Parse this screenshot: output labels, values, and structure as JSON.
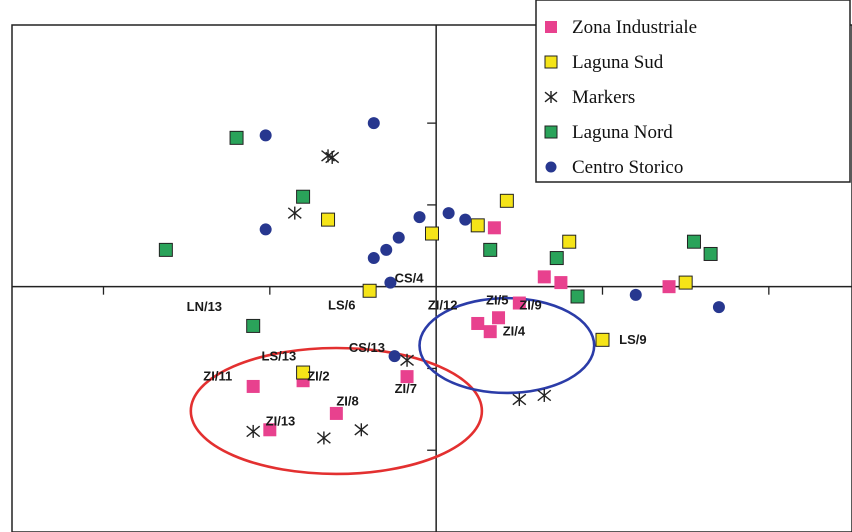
{
  "chart_data": {
    "type": "scatter",
    "title": "",
    "xlabel": "",
    "ylabel": "",
    "xlim": [
      -5.1,
      5.0
    ],
    "ylim": [
      -3.0,
      3.2
    ],
    "grid": false,
    "legend_position": "top-right",
    "series": [
      {
        "name": "Zona Industriale",
        "marker": "square",
        "color": "#e8418e",
        "points": [
          {
            "x": 0.7,
            "y": 0.72
          },
          {
            "x": 1.3,
            "y": 0.12
          },
          {
            "x": 1.5,
            "y": 0.05
          },
          {
            "x": 2.8,
            "y": 0.0
          },
          {
            "x": 1.0,
            "y": -0.2
          },
          {
            "x": 0.5,
            "y": -0.45
          },
          {
            "x": 0.75,
            "y": -0.38
          },
          {
            "x": 0.65,
            "y": -0.55
          },
          {
            "x": -1.6,
            "y": -1.15
          },
          {
            "x": -0.35,
            "y": -1.1
          },
          {
            "x": -2.2,
            "y": -1.22
          },
          {
            "x": -1.2,
            "y": -1.55
          },
          {
            "x": -2.0,
            "y": -1.75
          }
        ]
      },
      {
        "name": "Laguna  Sud",
        "marker": "square",
        "color": "#f5e418",
        "points": [
          {
            "x": 0.85,
            "y": 1.05
          },
          {
            "x": 0.5,
            "y": 0.75
          },
          {
            "x": -1.3,
            "y": 0.82
          },
          {
            "x": -0.05,
            "y": 0.65
          },
          {
            "x": 1.6,
            "y": 0.55
          },
          {
            "x": 3.0,
            "y": 0.05
          },
          {
            "x": -0.8,
            "y": -0.05
          },
          {
            "x": 2.0,
            "y": -0.65
          },
          {
            "x": -1.6,
            "y": -1.05
          }
        ]
      },
      {
        "name": "Markers",
        "marker": "asterisk",
        "color": "#222222",
        "points": [
          {
            "x": -1.3,
            "y": 1.6
          },
          {
            "x": -1.25,
            "y": 1.58
          },
          {
            "x": -1.7,
            "y": 0.9
          },
          {
            "x": -0.35,
            "y": -0.9
          },
          {
            "x": 1.0,
            "y": -1.38
          },
          {
            "x": 1.3,
            "y": -1.33
          },
          {
            "x": -2.2,
            "y": -1.77
          },
          {
            "x": -0.9,
            "y": -1.75
          },
          {
            "x": -1.35,
            "y": -1.85
          }
        ]
      },
      {
        "name": "Laguna  Nord",
        "marker": "square",
        "color": "#2aa35a",
        "points": [
          {
            "x": -2.4,
            "y": 1.82
          },
          {
            "x": -1.6,
            "y": 1.1
          },
          {
            "x": -3.25,
            "y": 0.45
          },
          {
            "x": 0.65,
            "y": 0.45
          },
          {
            "x": 1.45,
            "y": 0.35
          },
          {
            "x": 3.1,
            "y": 0.55
          },
          {
            "x": 3.3,
            "y": 0.4
          },
          {
            "x": 1.7,
            "y": -0.12
          },
          {
            "x": -2.2,
            "y": -0.48
          }
        ]
      },
      {
        "name": "Centro  Storico",
        "marker": "circle",
        "color": "#27378f",
        "points": [
          {
            "x": -2.05,
            "y": 1.85
          },
          {
            "x": -0.75,
            "y": 2.0
          },
          {
            "x": -2.05,
            "y": 0.7
          },
          {
            "x": -0.2,
            "y": 0.85
          },
          {
            "x": 0.15,
            "y": 0.9
          },
          {
            "x": 0.35,
            "y": 0.82
          },
          {
            "x": -0.45,
            "y": 0.6
          },
          {
            "x": -0.6,
            "y": 0.45
          },
          {
            "x": -0.75,
            "y": 0.35
          },
          {
            "x": -0.55,
            "y": 0.05
          },
          {
            "x": 2.4,
            "y": -0.1
          },
          {
            "x": 3.4,
            "y": -0.25
          },
          {
            "x": -0.5,
            "y": -0.85
          }
        ]
      }
    ],
    "annotations": [
      {
        "text": "CS/4",
        "x": -0.5,
        "y": 0.05
      },
      {
        "text": "LN/13",
        "x": -3.0,
        "y": -0.3
      },
      {
        "text": "LS/6",
        "x": -1.3,
        "y": -0.28
      },
      {
        "text": "ZI/12",
        "x": -0.1,
        "y": -0.28
      },
      {
        "text": "ZI/5",
        "x": 0.6,
        "y": -0.22
      },
      {
        "text": "ZI/9",
        "x": 1.0,
        "y": -0.28
      },
      {
        "text": "ZI/4",
        "x": 0.8,
        "y": -0.6
      },
      {
        "text": "LS/9",
        "x": 2.2,
        "y": -0.7
      },
      {
        "text": "LS/13",
        "x": -2.1,
        "y": -0.9
      },
      {
        "text": "CS/13",
        "x": -1.05,
        "y": -0.8
      },
      {
        "text": "ZI/11",
        "x": -2.8,
        "y": -1.15
      },
      {
        "text": "ZI/2",
        "x": -1.55,
        "y": -1.15
      },
      {
        "text": "ZI/7",
        "x": -0.5,
        "y": -1.3
      },
      {
        "text": "ZI/8",
        "x": -1.2,
        "y": -1.45
      },
      {
        "text": "ZI/13",
        "x": -2.05,
        "y": -1.7
      }
    ],
    "ellipses": [
      {
        "color": "#e33030",
        "cx": -1.2,
        "cy": -1.52,
        "rx": 1.75,
        "ry": 0.77
      },
      {
        "color": "#2b3ca8",
        "cx": 0.85,
        "cy": -0.72,
        "rx": 1.05,
        "ry": 0.58
      }
    ]
  }
}
